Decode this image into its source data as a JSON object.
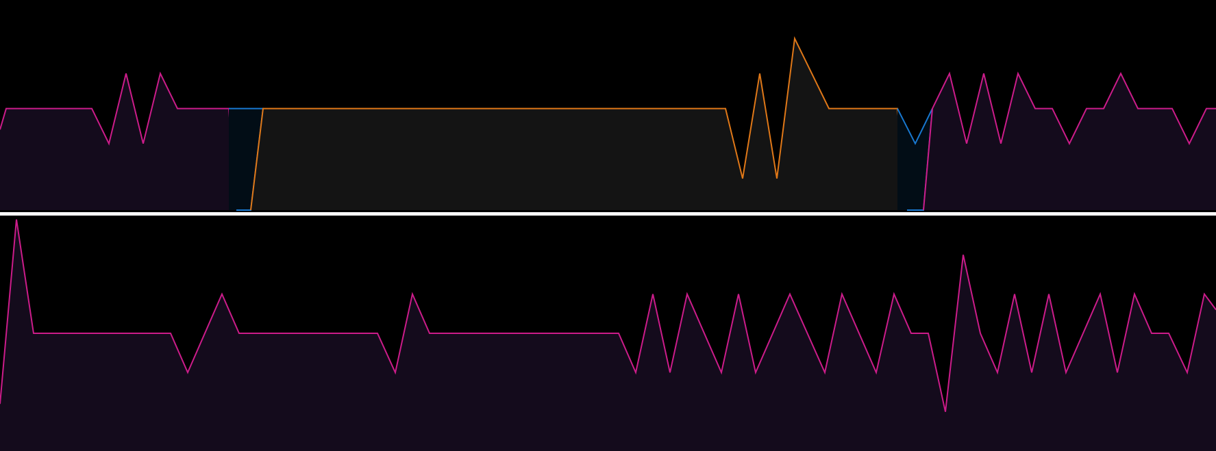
{
  "colors": {
    "background": "#000000",
    "divider": "#ffffff",
    "magenta_line": "#cc1c8a",
    "magenta_fill": "#140b1c",
    "blue_line": "#1878d0",
    "blue_fill": "#020d16",
    "orange_line": "#e07818",
    "orange_fill": "#141414"
  },
  "chart_data": [
    {
      "type": "area",
      "ylim": [
        0,
        6
      ],
      "xlim": [
        0,
        1775
      ],
      "series": [
        {
          "color": "magenta",
          "points": [
            [
              0,
              2.3
            ],
            [
              9,
              2.9
            ],
            [
              134,
              2.9
            ],
            [
              159,
              1.9
            ],
            [
              184,
              3.9
            ],
            [
              209,
              1.9
            ],
            [
              234,
              3.9
            ],
            [
              259,
              2.9
            ],
            [
              334,
              2.9
            ],
            [
              345,
              0
            ]
          ]
        },
        {
          "color": "blue",
          "points": [
            [
              334,
              2.9
            ],
            [
              384,
              2.9
            ],
            [
              366,
              0
            ],
            [
              345,
              0
            ]
          ]
        },
        {
          "color": "orange",
          "points": [
            [
              366,
              0
            ],
            [
              384,
              2.9
            ],
            [
              1059,
              2.9
            ],
            [
              1084,
              0.9
            ],
            [
              1109,
              3.9
            ],
            [
              1134,
              0.9
            ],
            [
              1160,
              4.9
            ],
            [
              1210,
              2.9
            ],
            [
              1310,
              2.9
            ],
            [
              1324,
              0
            ]
          ]
        },
        {
          "color": "blue",
          "points": [
            [
              1310,
              2.9
            ],
            [
              1336,
              1.9
            ],
            [
              1361,
              2.9
            ],
            [
              1348,
              0
            ],
            [
              1324,
              0
            ]
          ]
        },
        {
          "color": "magenta",
          "points": [
            [
              1348,
              0
            ],
            [
              1361,
              2.9
            ],
            [
              1386,
              3.9
            ],
            [
              1411,
              1.9
            ],
            [
              1436,
              3.9
            ],
            [
              1461,
              1.9
            ],
            [
              1486,
              3.9
            ],
            [
              1511,
              2.9
            ],
            [
              1536,
              2.9
            ],
            [
              1561,
              1.9
            ],
            [
              1586,
              2.9
            ],
            [
              1611,
              2.9
            ],
            [
              1636,
              3.9
            ],
            [
              1661,
              2.9
            ],
            [
              1711,
              2.9
            ],
            [
              1736,
              1.9
            ],
            [
              1761,
              2.9
            ],
            [
              1775,
              2.9
            ]
          ]
        }
      ]
    },
    {
      "type": "area",
      "ylim": [
        0,
        6
      ],
      "xlim": [
        0,
        1775
      ],
      "series": [
        {
          "color": "magenta",
          "points": [
            [
              0,
              1.2
            ],
            [
              24,
              5.9
            ],
            [
              49,
              3.0
            ],
            [
              249,
              3.0
            ],
            [
              274,
              2.0
            ],
            [
              324,
              4.0
            ],
            [
              349,
              3.0
            ],
            [
              551,
              3.0
            ],
            [
              577,
              2.0
            ],
            [
              602,
              4.0
            ],
            [
              627,
              3.0
            ],
            [
              903,
              3.0
            ],
            [
              928,
              2.0
            ],
            [
              953,
              4.0
            ],
            [
              978,
              2.0
            ],
            [
              1003,
              4.0
            ],
            [
              1053,
              2.0
            ],
            [
              1078,
              4.0
            ],
            [
              1103,
              2.0
            ],
            [
              1153,
              4.0
            ],
            [
              1204,
              2.0
            ],
            [
              1229,
              4.0
            ],
            [
              1279,
              2.0
            ],
            [
              1305,
              4.0
            ],
            [
              1330,
              3.0
            ],
            [
              1355,
              3.0
            ],
            [
              1380,
              1.0
            ],
            [
              1406,
              5.0
            ],
            [
              1431,
              3.0
            ],
            [
              1456,
              2.0
            ],
            [
              1481,
              4.0
            ],
            [
              1506,
              2.0
            ],
            [
              1531,
              4.0
            ],
            [
              1556,
              2.0
            ],
            [
              1606,
              4.0
            ],
            [
              1631,
              2.0
            ],
            [
              1656,
              4.0
            ],
            [
              1681,
              3.0
            ],
            [
              1706,
              3.0
            ],
            [
              1733,
              2.0
            ],
            [
              1758,
              4.0
            ],
            [
              1775,
              3.6
            ]
          ]
        }
      ]
    }
  ]
}
